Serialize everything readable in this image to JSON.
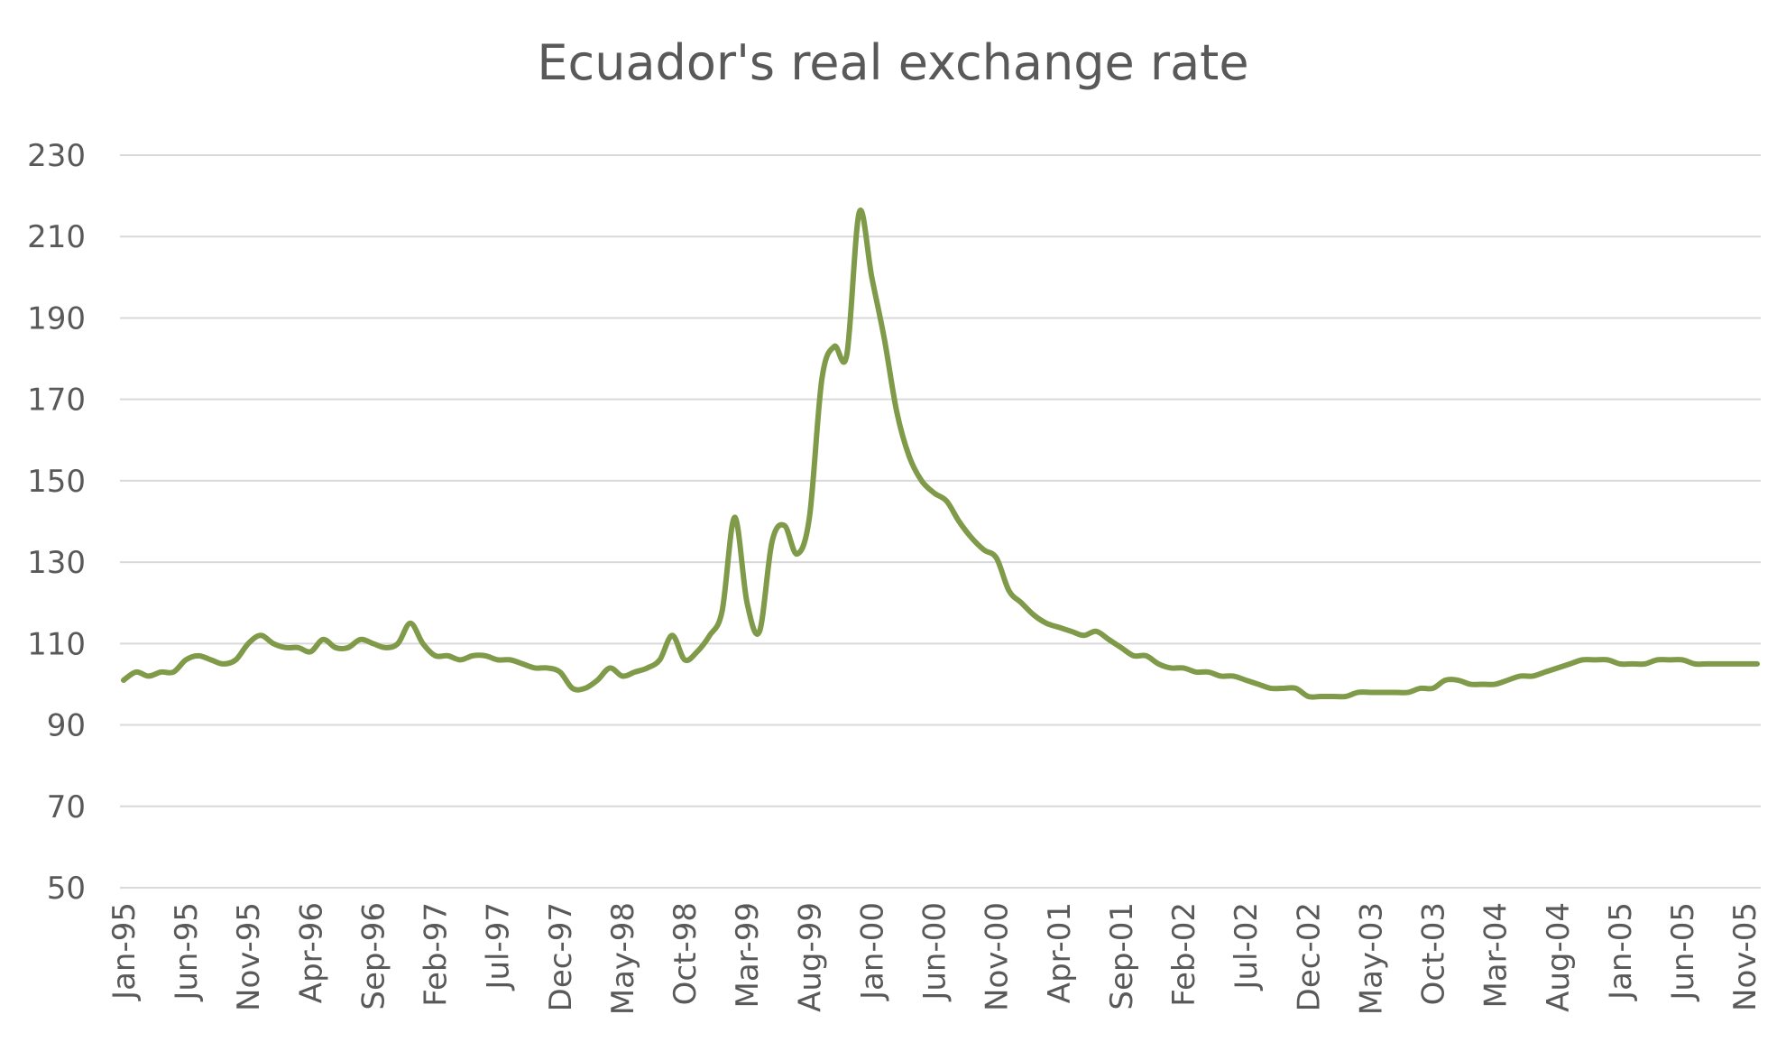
{
  "chart_data": {
    "type": "line",
    "title": "Ecuador's real exchange rate",
    "xlabel": "",
    "ylabel": "",
    "ylim": [
      50,
      230
    ],
    "yticks": [
      50,
      70,
      90,
      110,
      130,
      150,
      170,
      190,
      210,
      230
    ],
    "grid": true,
    "legend": "none",
    "line_color": "#7f9a48",
    "grid_color": "#d9d9d9",
    "text_color": "#595959",
    "xtick_labels": [
      "Jan-95",
      "Jun-95",
      "Nov-95",
      "Apr-96",
      "Sep-96",
      "Feb-97",
      "Jul-97",
      "Dec-97",
      "May-98",
      "Oct-98",
      "Mar-99",
      "Aug-99",
      "Jan-00",
      "Jun-00",
      "Nov-00",
      "Apr-01",
      "Sep-01",
      "Feb-02",
      "Jul-02",
      "Dec-02",
      "May-03",
      "Oct-03",
      "Mar-04",
      "Aug-04",
      "Jan-05",
      "Jun-05",
      "Nov-05"
    ],
    "x": [
      "Jan-95",
      "Feb-95",
      "Mar-95",
      "Apr-95",
      "May-95",
      "Jun-95",
      "Jul-95",
      "Aug-95",
      "Sep-95",
      "Oct-95",
      "Nov-95",
      "Dec-95",
      "Jan-96",
      "Feb-96",
      "Mar-96",
      "Apr-96",
      "May-96",
      "Jun-96",
      "Jul-96",
      "Aug-96",
      "Sep-96",
      "Oct-96",
      "Nov-96",
      "Dec-96",
      "Jan-97",
      "Feb-97",
      "Mar-97",
      "Apr-97",
      "May-97",
      "Jun-97",
      "Jul-97",
      "Aug-97",
      "Sep-97",
      "Oct-97",
      "Nov-97",
      "Dec-97",
      "Jan-98",
      "Feb-98",
      "Mar-98",
      "Apr-98",
      "May-98",
      "Jun-98",
      "Jul-98",
      "Aug-98",
      "Sep-98",
      "Oct-98",
      "Nov-98",
      "Dec-98",
      "Jan-99",
      "Feb-99",
      "Mar-99",
      "Apr-99",
      "May-99",
      "Jun-99",
      "Jul-99",
      "Aug-99",
      "Sep-99",
      "Oct-99",
      "Nov-99",
      "Dec-99",
      "Jan-00",
      "Feb-00",
      "Mar-00",
      "Apr-00",
      "May-00",
      "Jun-00",
      "Jul-00",
      "Aug-00",
      "Sep-00",
      "Oct-00",
      "Nov-00",
      "Dec-00",
      "Jan-01",
      "Feb-01",
      "Mar-01",
      "Apr-01",
      "May-01",
      "Jun-01",
      "Jul-01",
      "Aug-01",
      "Sep-01",
      "Oct-01",
      "Nov-01",
      "Dec-01",
      "Jan-02",
      "Feb-02",
      "Mar-02",
      "Apr-02",
      "May-02",
      "Jun-02",
      "Jul-02",
      "Aug-02",
      "Sep-02",
      "Oct-02",
      "Nov-02",
      "Dec-02",
      "Jan-03",
      "Feb-03",
      "Mar-03",
      "Apr-03",
      "May-03",
      "Jun-03",
      "Jul-03",
      "Aug-03",
      "Sep-03",
      "Oct-03",
      "Nov-03",
      "Dec-03",
      "Jan-04",
      "Feb-04",
      "Mar-04",
      "Apr-04",
      "May-04",
      "Jun-04",
      "Jul-04",
      "Aug-04",
      "Sep-04",
      "Oct-04",
      "Nov-04",
      "Dec-04",
      "Jan-05",
      "Feb-05",
      "Mar-05",
      "Apr-05",
      "May-05",
      "Jun-05",
      "Jul-05",
      "Aug-05",
      "Sep-05",
      "Oct-05",
      "Nov-05",
      "Dec-05"
    ],
    "series": [
      {
        "values": [
          101,
          103,
          102,
          103,
          103,
          106,
          107,
          106,
          105,
          106,
          110,
          112,
          110,
          109,
          109,
          108,
          111,
          109,
          109,
          111,
          110,
          109,
          110,
          115,
          110,
          107,
          107,
          106,
          107,
          107,
          106,
          106,
          105,
          104,
          104,
          103,
          99,
          99,
          101,
          104,
          102,
          103,
          104,
          106,
          112,
          106,
          108,
          112,
          118,
          141,
          120,
          113,
          135,
          139,
          132,
          141,
          175,
          183,
          181,
          216,
          200,
          185,
          167,
          156,
          150,
          147,
          145,
          140,
          136,
          133,
          131,
          123,
          120,
          117,
          115,
          114,
          113,
          112,
          113,
          111,
          109,
          107,
          107,
          105,
          104,
          104,
          103,
          103,
          102,
          102,
          101,
          100,
          99,
          99,
          99,
          97,
          97,
          97,
          97,
          98,
          98,
          98,
          98,
          98,
          99,
          99,
          101,
          101,
          100,
          100,
          100,
          101,
          102,
          102,
          103,
          104,
          105,
          106,
          106,
          106,
          105,
          105,
          105,
          106,
          106,
          106,
          105,
          105,
          105,
          105,
          105,
          105
        ]
      }
    ]
  }
}
